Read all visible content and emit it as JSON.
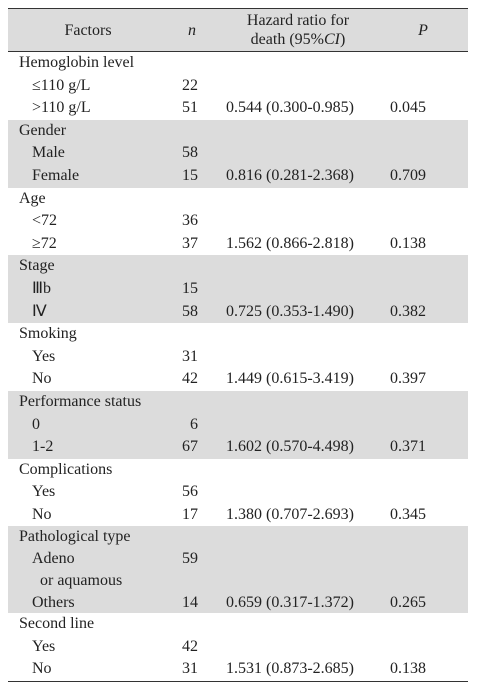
{
  "header": {
    "factors": "Factors",
    "n": "n",
    "hr_line1": "Hazard ratio for",
    "hr_line2_a": "death (95%",
    "hr_line2_ci": "CI",
    "hr_line2_b": ")",
    "p": "P"
  },
  "groups": [
    {
      "title": "Hemoglobin level",
      "rows": [
        {
          "label": "≤110 g/L",
          "n": "22"
        },
        {
          "label": ">110 g/L",
          "n": "51",
          "hr": "0.544 (0.300-0.985)",
          "p": "0.045"
        }
      ]
    },
    {
      "title": "Gender",
      "rows": [
        {
          "label": "Male",
          "n": "58"
        },
        {
          "label": "Female",
          "n": "15",
          "hr": "0.816 (0.281-2.368)",
          "p": "0.709"
        }
      ]
    },
    {
      "title": "Age",
      "rows": [
        {
          "label": "<72",
          "n": "36"
        },
        {
          "label": "≥72",
          "n": "37",
          "hr": "1.562 (0.866-2.818)",
          "p": "0.138"
        }
      ]
    },
    {
      "title": "Stage",
      "rows": [
        {
          "label": "Ⅲb",
          "n": "15"
        },
        {
          "label": "Ⅳ",
          "n": "58",
          "hr": "0.725 (0.353-1.490)",
          "p": "0.382"
        }
      ]
    },
    {
      "title": "Smoking",
      "rows": [
        {
          "label": "Yes",
          "n": "31"
        },
        {
          "label": "No",
          "n": "42",
          "hr": "1.449 (0.615-3.419)",
          "p": "0.397"
        }
      ]
    },
    {
      "title": "Performance status",
      "rows": [
        {
          "label": "0",
          "n": "6"
        },
        {
          "label": "1-2",
          "n": "67",
          "hr": "1.602 (0.570-4.498)",
          "p": "0.371"
        }
      ]
    },
    {
      "title": "Complications",
      "rows": [
        {
          "label": "Yes",
          "n": "56"
        },
        {
          "label": "No",
          "n": "17",
          "hr": "1.380 (0.707-2.693)",
          "p": "0.345"
        }
      ]
    },
    {
      "title": "Pathological type",
      "rows": [
        {
          "label": "Adeno",
          "n": "59"
        },
        {
          "label": "or aquamous"
        },
        {
          "label": "Others",
          "n": "14",
          "hr": "0.659 (0.317-1.372)",
          "p": "0.265"
        }
      ]
    },
    {
      "title": "Second line",
      "rows": [
        {
          "label": "Yes",
          "n": "42"
        },
        {
          "label": "No",
          "n": "31",
          "hr": "1.531 (0.873-2.685)",
          "p": "0.138"
        }
      ]
    }
  ]
}
